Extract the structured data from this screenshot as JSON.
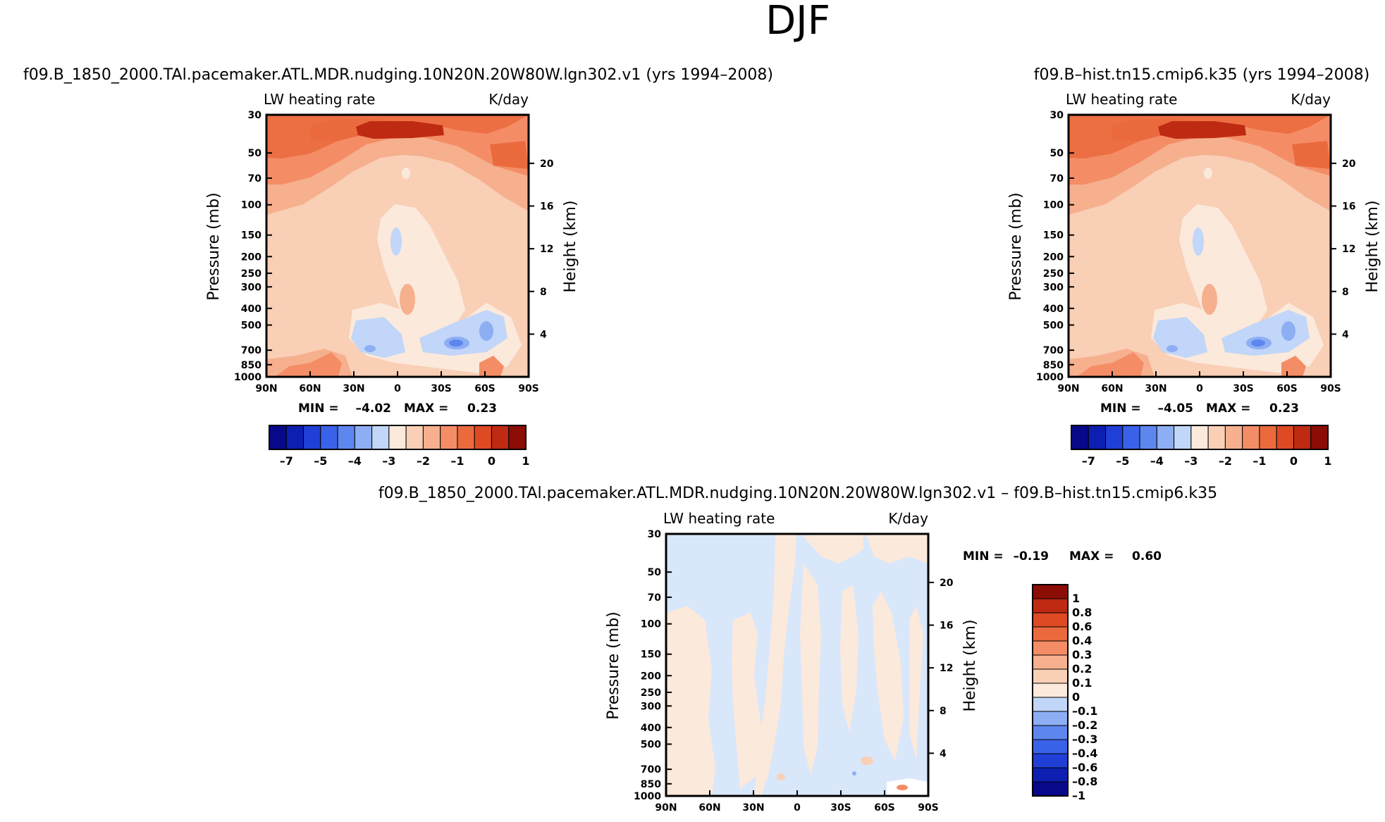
{
  "title": "DJF",
  "chart_data": [
    {
      "type": "heatmap",
      "title": "f09.B_1850_2000.TAl.pacemaker.ATL.MDR.nudging.10N20N.20W80W.lgn302.v1 (yrs 1994–2008)",
      "variable": "LW heating rate",
      "units": "K/day",
      "ylabel": "Pressure (mb)",
      "ylabel_right": "Height (km)",
      "x_ticks": [
        "90N",
        "60N",
        "30N",
        "0",
        "30S",
        "60S",
        "90S"
      ],
      "y_ticks": [
        "30",
        "50",
        "70",
        "100",
        "150",
        "200",
        "250",
        "300",
        "400",
        "500",
        "700",
        "850",
        "1000"
      ],
      "y_range": [
        1000,
        30
      ],
      "height_ticks": [
        "20",
        "16",
        "12",
        "8",
        "4"
      ],
      "min_label": "MIN =",
      "min": "–4.02",
      "max_label": "MAX =",
      "max": "0.23",
      "colorbar_labels": [
        "–7",
        "–5",
        "–4",
        "–3",
        "–2",
        "–1",
        "0",
        "1"
      ],
      "levels": [
        -7,
        -6,
        -5,
        -4.5,
        -4,
        -3.5,
        -3,
        -2.5,
        -2,
        -1.5,
        -1,
        -0.5,
        0,
        0.5,
        1
      ]
    },
    {
      "type": "heatmap",
      "title": "f09.B–hist.tn15.cmip6.k35 (yrs 1994–2008)",
      "variable": "LW heating rate",
      "units": "K/day",
      "ylabel": "Pressure (mb)",
      "ylabel_right": "Height (km)",
      "x_ticks": [
        "90N",
        "60N",
        "30N",
        "0",
        "30S",
        "60S",
        "90S"
      ],
      "y_ticks": [
        "30",
        "50",
        "70",
        "100",
        "150",
        "200",
        "250",
        "300",
        "400",
        "500",
        "700",
        "850",
        "1000"
      ],
      "y_range": [
        1000,
        30
      ],
      "height_ticks": [
        "20",
        "16",
        "12",
        "8",
        "4"
      ],
      "min_label": "MIN =",
      "min": "–4.05",
      "max_label": "MAX =",
      "max": "0.23",
      "colorbar_labels": [
        "–7",
        "–5",
        "–4",
        "–3",
        "–2",
        "–1",
        "0",
        "1"
      ],
      "levels": [
        -7,
        -6,
        -5,
        -4.5,
        -4,
        -3.5,
        -3,
        -2.5,
        -2,
        -1.5,
        -1,
        -0.5,
        0,
        0.5,
        1
      ]
    },
    {
      "type": "heatmap",
      "title": "f09.B_1850_2000.TAl.pacemaker.ATL.MDR.nudging.10N20N.20W80W.lgn302.v1 – f09.B–hist.tn15.cmip6.k35",
      "variable": "LW heating rate",
      "units": "K/day",
      "ylabel": "Pressure (mb)",
      "ylabel_right": "Height (km)",
      "x_ticks": [
        "90N",
        "60N",
        "30N",
        "0",
        "30S",
        "60S",
        "90S"
      ],
      "y_ticks": [
        "30",
        "50",
        "70",
        "100",
        "150",
        "200",
        "250",
        "300",
        "400",
        "500",
        "700",
        "850",
        "1000"
      ],
      "y_range": [
        1000,
        30
      ],
      "height_ticks": [
        "20",
        "16",
        "12",
        "8",
        "4"
      ],
      "min_label": "MIN =",
      "min": "–0.19",
      "max_label": "MAX =",
      "max": "0.60",
      "colorbar_labels": [
        "1",
        "0.8",
        "0.6",
        "0.4",
        "0.3",
        "0.2",
        "0.1",
        "0",
        "–0.1",
        "–0.2",
        "–0.3",
        "–0.4",
        "–0.6",
        "–0.8",
        "–1"
      ],
      "levels": [
        1,
        0.8,
        0.6,
        0.4,
        0.3,
        0.2,
        0.1,
        0,
        -0.1,
        -0.2,
        -0.3,
        -0.4,
        -0.6,
        -0.8,
        -1
      ]
    }
  ],
  "colors": {
    "colorbar_horizontal": [
      "#08088a",
      "#0c1fb0",
      "#1f3fd6",
      "#3a62e8",
      "#5d86ef",
      "#8eaef4",
      "#c1d6f8",
      "#fbe9dc",
      "#f9cfb6",
      "#f6b08e",
      "#f48d66",
      "#ea6a3e",
      "#dd4a24",
      "#bf2a12",
      "#8c0c06"
    ],
    "colorbar_vertical": [
      "#8c0c06",
      "#bf2a12",
      "#dd4a24",
      "#ea6a3e",
      "#f48d66",
      "#f6b08e",
      "#f9cfb6",
      "#fbe9dc",
      "#c1d6f8",
      "#8eaef4",
      "#5d86ef",
      "#3a62e8",
      "#1f3fd6",
      "#0c1fb0",
      "#08088a"
    ]
  }
}
